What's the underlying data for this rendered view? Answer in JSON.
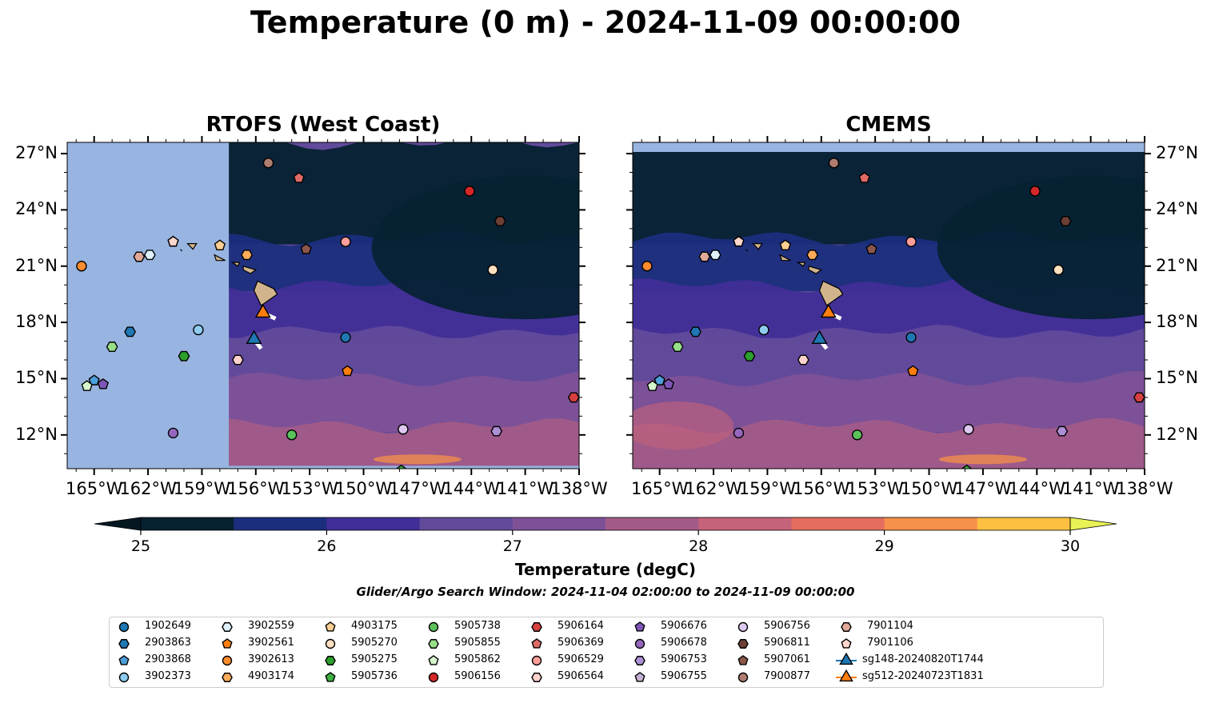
{
  "title": "Temperature (0 m) - 2024-11-09 00:00:00",
  "panels": [
    {
      "title": "RTOFS (West Coast)"
    },
    {
      "title": "CMEMS"
    }
  ],
  "axes": {
    "lon_labels": [
      "165°W",
      "162°W",
      "159°W",
      "156°W",
      "153°W",
      "150°W",
      "147°W",
      "144°W",
      "141°W",
      "138°W"
    ],
    "lat_labels": [
      "27°N",
      "24°N",
      "21°N",
      "18°N",
      "15°N",
      "12°N"
    ],
    "lon_range": [
      -166.5,
      -138
    ],
    "lat_range": [
      10.2,
      27.6
    ]
  },
  "colorbar": {
    "title": "Temperature (degC)",
    "ticks": [
      "25",
      "26",
      "27",
      "28",
      "29",
      "30"
    ],
    "range": [
      25,
      30
    ],
    "colors": [
      "#062131",
      "#1b2e7d",
      "#412e97",
      "#624a9b",
      "#7e5197",
      "#a25b88",
      "#c5637a",
      "#e36e5e",
      "#f6904a",
      "#fdc040"
    ],
    "under_color": "#051822",
    "over_color": "#e9f254"
  },
  "search_window": "Glider/Argo Search Window: 2024-11-04 02:00:00 to 2024-11-09 00:00:00",
  "legend": [
    {
      "label": "1902649",
      "marker": "circle",
      "color": "#1f77b4"
    },
    {
      "label": "2903863",
      "marker": "hexagon",
      "color": "#1f77b4"
    },
    {
      "label": "2903868",
      "marker": "pentagon",
      "color": "#4c9fd8"
    },
    {
      "label": "3902373",
      "marker": "circle",
      "color": "#8fcdf0"
    },
    {
      "label": "3902559",
      "marker": "hexagon",
      "color": "#dff1fb"
    },
    {
      "label": "3902561",
      "marker": "pentagon",
      "color": "#ff7f0e"
    },
    {
      "label": "3902613",
      "marker": "circle",
      "color": "#ff8c2e"
    },
    {
      "label": "4903174",
      "marker": "hexagon",
      "color": "#ffab5a"
    },
    {
      "label": "4903175",
      "marker": "pentagon",
      "color": "#fdcf92"
    },
    {
      "label": "5905270",
      "marker": "circle",
      "color": "#ffe0c0"
    },
    {
      "label": "5905275",
      "marker": "hexagon",
      "color": "#2ca02c"
    },
    {
      "label": "5905736",
      "marker": "pentagon",
      "color": "#3cb040"
    },
    {
      "label": "5905738",
      "marker": "circle",
      "color": "#5cc35c"
    },
    {
      "label": "5905855",
      "marker": "hexagon",
      "color": "#98df8a"
    },
    {
      "label": "5905862",
      "marker": "pentagon",
      "color": "#d5f5cc"
    },
    {
      "label": "5906156",
      "marker": "circle",
      "color": "#d62728"
    },
    {
      "label": "5906164",
      "marker": "hexagon",
      "color": "#d84040"
    },
    {
      "label": "5906369",
      "marker": "pentagon",
      "color": "#e06a66"
    },
    {
      "label": "5906529",
      "marker": "circle",
      "color": "#ff9e9a"
    },
    {
      "label": "5906564",
      "marker": "hexagon",
      "color": "#ffd2cc"
    },
    {
      "label": "5906676",
      "marker": "pentagon",
      "color": "#7d56b8"
    },
    {
      "label": "5906678",
      "marker": "circle",
      "color": "#9467bd"
    },
    {
      "label": "5906753",
      "marker": "hexagon",
      "color": "#ad8fd6"
    },
    {
      "label": "5906755",
      "marker": "pentagon",
      "color": "#c5b0d5"
    },
    {
      "label": "5906756",
      "marker": "circle",
      "color": "#ddc8f0"
    },
    {
      "label": "5906811",
      "marker": "hexagon",
      "color": "#6e3f35"
    },
    {
      "label": "5907061",
      "marker": "pentagon",
      "color": "#8c564b"
    },
    {
      "label": "7900877",
      "marker": "circle",
      "color": "#b07d70"
    },
    {
      "label": "7901104",
      "marker": "hexagon",
      "color": "#e0a898"
    },
    {
      "label": "7901106",
      "marker": "pentagon",
      "color": "#ffd6cc"
    },
    {
      "label": "sg148-20240820T1744",
      "marker": "triangle",
      "color": "#1f77b4"
    },
    {
      "label": "sg512-20240723T1831",
      "marker": "triangle",
      "color": "#ff7f0e"
    }
  ],
  "markers": [
    {
      "id": "1902649",
      "lon": -151.0,
      "lat": 17.2
    },
    {
      "id": "2903863",
      "lon": -163.0,
      "lat": 17.5
    },
    {
      "id": "2903868",
      "lon": -165.0,
      "lat": 14.9
    },
    {
      "id": "3902373",
      "lon": -159.2,
      "lat": 17.6
    },
    {
      "id": "3902559",
      "lon": -161.9,
      "lat": 21.6
    },
    {
      "id": "3902561",
      "lon": -150.9,
      "lat": 15.4
    },
    {
      "id": "3902613",
      "lon": -165.7,
      "lat": 21.0
    },
    {
      "id": "4903174",
      "lon": -156.5,
      "lat": 21.6
    },
    {
      "id": "4903175",
      "lon": -158.0,
      "lat": 22.1
    },
    {
      "id": "5905270",
      "lon": -142.8,
      "lat": 20.8
    },
    {
      "id": "5905275",
      "lon": -160.0,
      "lat": 16.2
    },
    {
      "id": "5905736",
      "lon": -147.9,
      "lat": 10.1
    },
    {
      "id": "5905738",
      "lon": -154.0,
      "lat": 12.0
    },
    {
      "id": "5905855",
      "lon": -164.0,
      "lat": 16.7
    },
    {
      "id": "5905862",
      "lon": -165.4,
      "lat": 14.6
    },
    {
      "id": "5906156",
      "lon": -144.1,
      "lat": 25.0
    },
    {
      "id": "5906164",
      "lon": -138.3,
      "lat": 14.0
    },
    {
      "id": "5906369",
      "lon": -153.6,
      "lat": 25.7
    },
    {
      "id": "5906529",
      "lon": -151.0,
      "lat": 22.3
    },
    {
      "id": "5906564",
      "lon": -157.0,
      "lat": 16.0
    },
    {
      "id": "5906676",
      "lon": -164.5,
      "lat": 14.7
    },
    {
      "id": "5906678",
      "lon": -160.6,
      "lat": 12.1
    },
    {
      "id": "5906753",
      "lon": -142.6,
      "lat": 12.2
    },
    {
      "id": "5906755",
      "lon": -160.6,
      "lat": 22.3
    },
    {
      "id": "5906756",
      "lon": -147.8,
      "lat": 12.3
    },
    {
      "id": "5906811",
      "lon": -142.4,
      "lat": 23.4
    },
    {
      "id": "5907061",
      "lon": -153.2,
      "lat": 21.9
    },
    {
      "id": "7900877",
      "lon": -155.3,
      "lat": 26.5
    },
    {
      "id": "7901104",
      "lon": -162.5,
      "lat": 21.5
    },
    {
      "id": "7901106",
      "lon": -160.6,
      "lat": 22.3
    },
    {
      "id": "sg148-20240820T1744",
      "lon": -156.1,
      "lat": 17.1
    },
    {
      "id": "sg512-20240723T1831",
      "lon": -155.6,
      "lat": 18.5
    }
  ],
  "glider_tracks": [
    {
      "id": "sg148-20240820T1744",
      "points": [
        [
          -156.1,
          17.1
        ],
        [
          -155.7,
          16.6
        ]
      ]
    },
    {
      "id": "sg512-20240723T1831",
      "points": [
        [
          -155.6,
          18.5
        ],
        [
          -154.9,
          18.2
        ]
      ]
    }
  ]
}
